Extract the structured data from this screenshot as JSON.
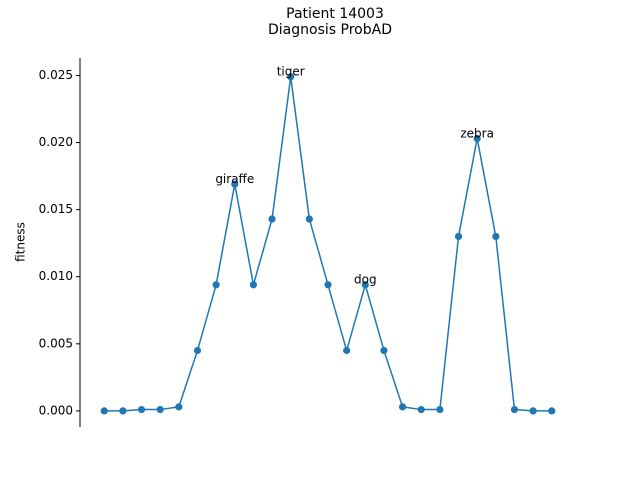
{
  "chart_data": {
    "type": "line",
    "title_lines": [
      "Patient 14003",
      "Diagnosis ProbAD"
    ],
    "xlabel": "",
    "ylabel": "fitness",
    "ylim": [
      -0.0012,
      0.0263
    ],
    "xlim": [
      -1.3,
      25.3
    ],
    "yticks": [
      0.0,
      0.005,
      0.01,
      0.015,
      0.02,
      0.025
    ],
    "ytick_labels": [
      "0.000",
      "0.005",
      "0.010",
      "0.015",
      "0.020",
      "0.025"
    ],
    "grid": false,
    "legend": "none",
    "x_axis_visible": false,
    "color": "#1f77b4",
    "series": [
      {
        "x": [
          0,
          1,
          2,
          3,
          4,
          5,
          6,
          7,
          8,
          9,
          10,
          11,
          12,
          13,
          14,
          15,
          16,
          17,
          18,
          19,
          20,
          21,
          22,
          23,
          24
        ],
        "values": [
          0.0,
          0.0,
          0.0001,
          0.0001,
          0.0003,
          0.0045,
          0.0094,
          0.0169,
          0.0094,
          0.0143,
          0.0249,
          0.0143,
          0.0094,
          0.0045,
          0.0094,
          0.0045,
          0.0003,
          0.0001,
          0.0001,
          0.013,
          0.0203,
          0.013,
          0.0001,
          0.0,
          0.0
        ]
      }
    ],
    "annotations": [
      {
        "x": 7,
        "y": 0.0169,
        "text": "giraffe"
      },
      {
        "x": 10,
        "y": 0.0249,
        "text": "tiger"
      },
      {
        "x": 14,
        "y": 0.0094,
        "text": "dog"
      },
      {
        "x": 20,
        "y": 0.0203,
        "text": "zebra"
      }
    ]
  }
}
